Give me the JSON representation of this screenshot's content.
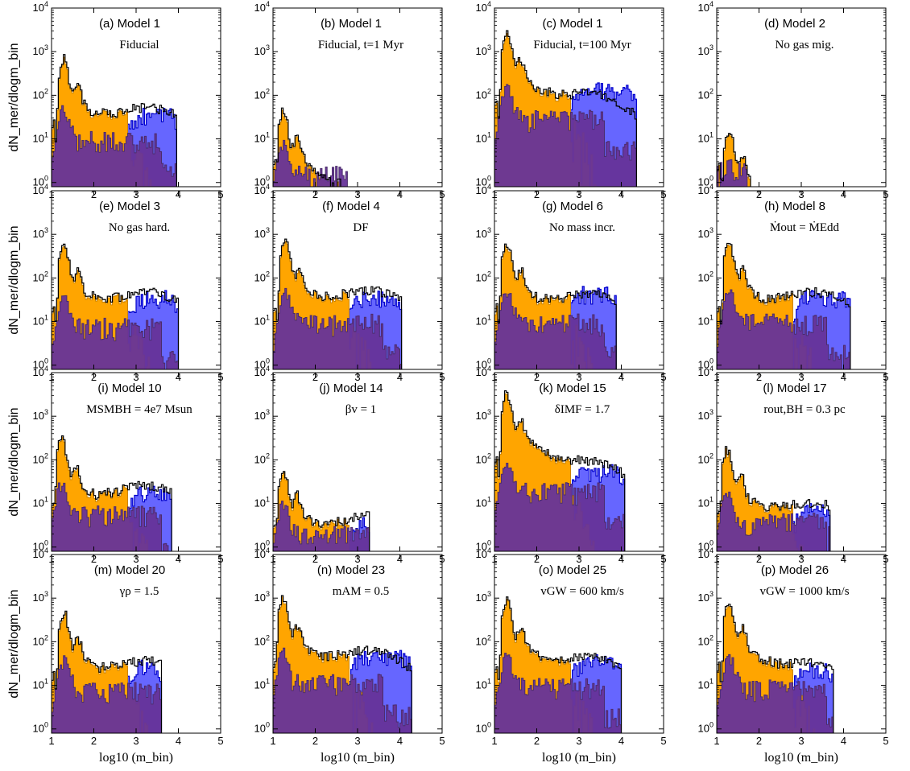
{
  "figure": {
    "ylabel": "dN_mer/dlogm_bin",
    "xlabel": "log10 (m_bin)",
    "colors": {
      "total": "#000000",
      "orange": "#FFA500",
      "blue": "#6666FF",
      "purple": "#663399",
      "blue_edge": "#0000CC",
      "orange_edge": "#CC8400",
      "purple_edge": "#4B2C6B"
    }
  },
  "chart_data": [
    {
      "type": "bar",
      "title": "(a) Model 1",
      "subtitle": "Fiducial",
      "xlim": [
        1,
        5
      ],
      "ylim": [
        0.8,
        10000
      ],
      "yscale": "log",
      "xticks": [
        "1",
        "2",
        "3",
        "4",
        "5"
      ],
      "yticks": [
        "10^0",
        "10^1",
        "10^2",
        "10^3",
        "10^4"
      ],
      "series_note": "log-binned histogram values at bin centers",
      "peak": {
        "x": 1.3,
        "y": 550
      },
      "xmax": 3.95,
      "purple_peak": 50,
      "blue_plateau": 40,
      "black_plateau": 50
    },
    {
      "type": "bar",
      "title": "(b) Model 1",
      "subtitle": "Fiducial, t=1 Myr",
      "xlim": [
        1,
        5
      ],
      "ylim": [
        0.8,
        10000
      ],
      "yscale": "log",
      "xticks": [
        "1",
        "2",
        "3",
        "4",
        "5"
      ],
      "yticks": [
        "10^0",
        "10^1",
        "10^2",
        "10^3",
        "10^4"
      ],
      "peak": {
        "x": 1.25,
        "y": 35
      },
      "xmax": 2.75,
      "purple_peak": 8,
      "blue_plateau": 0,
      "black_plateau": 0
    },
    {
      "type": "bar",
      "title": "(c) Model 1",
      "subtitle": "Fiducial, t=100 Myr",
      "xlim": [
        1,
        5
      ],
      "ylim": [
        0.8,
        10000
      ],
      "yscale": "log",
      "xticks": [
        "1",
        "2",
        "3",
        "4",
        "5"
      ],
      "yticks": [
        "10^0",
        "10^1",
        "10^2",
        "10^3",
        "10^4"
      ],
      "peak": {
        "x": 1.3,
        "y": 2200
      },
      "xmax": 4.35,
      "purple_peak": 150,
      "blue_plateau": 150,
      "black_plateau": 100
    },
    {
      "type": "bar",
      "title": "(d) Model 2",
      "subtitle": "No gas mig.",
      "xlim": [
        1,
        5
      ],
      "ylim": [
        0.8,
        10000
      ],
      "yscale": "log",
      "xticks": [
        "1",
        "2",
        "3",
        "4",
        "5"
      ],
      "yticks": [
        "10^0",
        "10^1",
        "10^2",
        "10^3",
        "10^4"
      ],
      "peak": {
        "x": 1.3,
        "y": 12
      },
      "xmax": 1.8,
      "purple_peak": 3,
      "blue_plateau": 0,
      "black_plateau": 0
    },
    {
      "type": "bar",
      "title": "(e) Model 3",
      "subtitle": "No gas hard.",
      "xlim": [
        1,
        5
      ],
      "ylim": [
        0.8,
        10000
      ],
      "yscale": "log",
      "xticks": [
        "1",
        "2",
        "3",
        "4",
        "5"
      ],
      "yticks": [
        "10^0",
        "10^1",
        "10^2",
        "10^3",
        "10^4"
      ],
      "peak": {
        "x": 1.3,
        "y": 500
      },
      "xmax": 4.0,
      "purple_peak": 40,
      "blue_plateau": 40,
      "black_plateau": 45
    },
    {
      "type": "bar",
      "title": "(f) Model 4",
      "subtitle": "DF",
      "xlim": [
        1,
        5
      ],
      "ylim": [
        0.8,
        10000
      ],
      "yscale": "log",
      "xticks": [
        "1",
        "2",
        "3",
        "4",
        "5"
      ],
      "yticks": [
        "10^0",
        "10^1",
        "10^2",
        "10^3",
        "10^4"
      ],
      "peak": {
        "x": 1.3,
        "y": 550
      },
      "xmax": 4.05,
      "purple_peak": 50,
      "blue_plateau": 40,
      "black_plateau": 50
    },
    {
      "type": "bar",
      "title": "(g) Model 6",
      "subtitle": "No mass incr.",
      "xlim": [
        1,
        5
      ],
      "ylim": [
        0.8,
        10000
      ],
      "yscale": "log",
      "xticks": [
        "1",
        "2",
        "3",
        "4",
        "5"
      ],
      "yticks": [
        "10^0",
        "10^1",
        "10^2",
        "10^3",
        "10^4"
      ],
      "peak": {
        "x": 1.3,
        "y": 500
      },
      "xmax": 3.9,
      "purple_peak": 50,
      "blue_plateau": 50,
      "black_plateau": 40
    },
    {
      "type": "bar",
      "title": "(h) Model 8",
      "subtitle": "Ṁout = ṀEdd",
      "xlim": [
        1,
        5
      ],
      "ylim": [
        0.8,
        10000
      ],
      "yscale": "log",
      "xticks": [
        "1",
        "2",
        "3",
        "4",
        "5"
      ],
      "yticks": [
        "10^0",
        "10^1",
        "10^2",
        "10^3",
        "10^4"
      ],
      "peak": {
        "x": 1.3,
        "y": 500
      },
      "xmax": 4.15,
      "purple_peak": 50,
      "blue_plateau": 40,
      "black_plateau": 45
    },
    {
      "type": "bar",
      "title": "(i) Model 10",
      "subtitle": "MSMBH = 4e7 Msun",
      "xlim": [
        1,
        5
      ],
      "ylim": [
        0.8,
        10000
      ],
      "yscale": "log",
      "xticks": [
        "1",
        "2",
        "3",
        "4",
        "5"
      ],
      "yticks": [
        "10^0",
        "10^1",
        "10^2",
        "10^3",
        "10^4"
      ],
      "peak": {
        "x": 1.25,
        "y": 250
      },
      "xmax": 3.85,
      "purple_peak": 30,
      "blue_plateau": 20,
      "black_plateau": 25
    },
    {
      "type": "bar",
      "title": "(j) Model 14",
      "subtitle": "βv = 1",
      "xlim": [
        1,
        5
      ],
      "ylim": [
        0.8,
        10000
      ],
      "yscale": "log",
      "xticks": [
        "1",
        "2",
        "3",
        "4",
        "5"
      ],
      "yticks": [
        "10^0",
        "10^1",
        "10^2",
        "10^3",
        "10^4"
      ],
      "peak": {
        "x": 1.25,
        "y": 50
      },
      "xmax": 3.3,
      "purple_peak": 10,
      "blue_plateau": 4,
      "black_plateau": 5
    },
    {
      "type": "bar",
      "title": "(k) Model 15",
      "subtitle": "δIMF = 1.7",
      "xlim": [
        1,
        5
      ],
      "ylim": [
        0.8,
        10000
      ],
      "yscale": "log",
      "xticks": [
        "1",
        "2",
        "3",
        "4",
        "5"
      ],
      "yticks": [
        "10^0",
        "10^1",
        "10^2",
        "10^3",
        "10^4"
      ],
      "peak": {
        "x": 1.3,
        "y": 2800
      },
      "xmax": 4.1,
      "purple_peak": 100,
      "blue_plateau": 60,
      "black_plateau": 80
    },
    {
      "type": "bar",
      "title": "(l) Model 17",
      "subtitle": "rout,BH = 0.3 pc",
      "xlim": [
        1,
        5
      ],
      "ylim": [
        0.8,
        10000
      ],
      "yscale": "log",
      "xticks": [
        "1",
        "2",
        "3",
        "4",
        "5"
      ],
      "yticks": [
        "10^0",
        "10^1",
        "10^2",
        "10^3",
        "10^4"
      ],
      "peak": {
        "x": 1.25,
        "y": 140
      },
      "xmax": 3.7,
      "purple_peak": 20,
      "blue_plateau": 8,
      "black_plateau": 10
    },
    {
      "type": "bar",
      "title": "(m) Model 20",
      "subtitle": "γρ = 1.5",
      "xlim": [
        1,
        5
      ],
      "ylim": [
        0.8,
        10000
      ],
      "yscale": "log",
      "xticks": [
        "1",
        "2",
        "3",
        "4",
        "5"
      ],
      "yticks": [
        "10^0",
        "10^1",
        "10^2",
        "10^3",
        "10^4"
      ],
      "peak": {
        "x": 1.3,
        "y": 380
      },
      "xmax": 3.6,
      "purple_peak": 40,
      "blue_plateau": 30,
      "black_plateau": 35
    },
    {
      "type": "bar",
      "title": "(n) Model 23",
      "subtitle": "mAM = 0.5",
      "xlim": [
        1,
        5
      ],
      "ylim": [
        0.8,
        10000
      ],
      "yscale": "log",
      "xticks": [
        "1",
        "2",
        "3",
        "4",
        "5"
      ],
      "yticks": [
        "10^0",
        "10^1",
        "10^2",
        "10^3",
        "10^4"
      ],
      "peak": {
        "x": 1.25,
        "y": 800
      },
      "xmax": 4.3,
      "purple_peak": 60,
      "blue_plateau": 50,
      "black_plateau": 60
    },
    {
      "type": "bar",
      "title": "(o) Model 25",
      "subtitle": "vGW = 600 km/s",
      "xlim": [
        1,
        5
      ],
      "ylim": [
        0.8,
        10000
      ],
      "yscale": "log",
      "xticks": [
        "1",
        "2",
        "3",
        "4",
        "5"
      ],
      "yticks": [
        "10^0",
        "10^1",
        "10^2",
        "10^3",
        "10^4"
      ],
      "peak": {
        "x": 1.3,
        "y": 700
      },
      "xmax": 4.0,
      "purple_peak": 50,
      "blue_plateau": 40,
      "black_plateau": 40
    },
    {
      "type": "bar",
      "title": "(p) Model 26",
      "subtitle": "vGW = 1000 km/s",
      "xlim": [
        1,
        5
      ],
      "ylim": [
        0.8,
        10000
      ],
      "yscale": "log",
      "xticks": [
        "1",
        "2",
        "3",
        "4",
        "5"
      ],
      "yticks": [
        "10^0",
        "10^1",
        "10^2",
        "10^3",
        "10^4"
      ],
      "peak": {
        "x": 1.3,
        "y": 650
      },
      "xmax": 3.75,
      "purple_peak": 45,
      "blue_plateau": 25,
      "black_plateau": 30
    }
  ]
}
